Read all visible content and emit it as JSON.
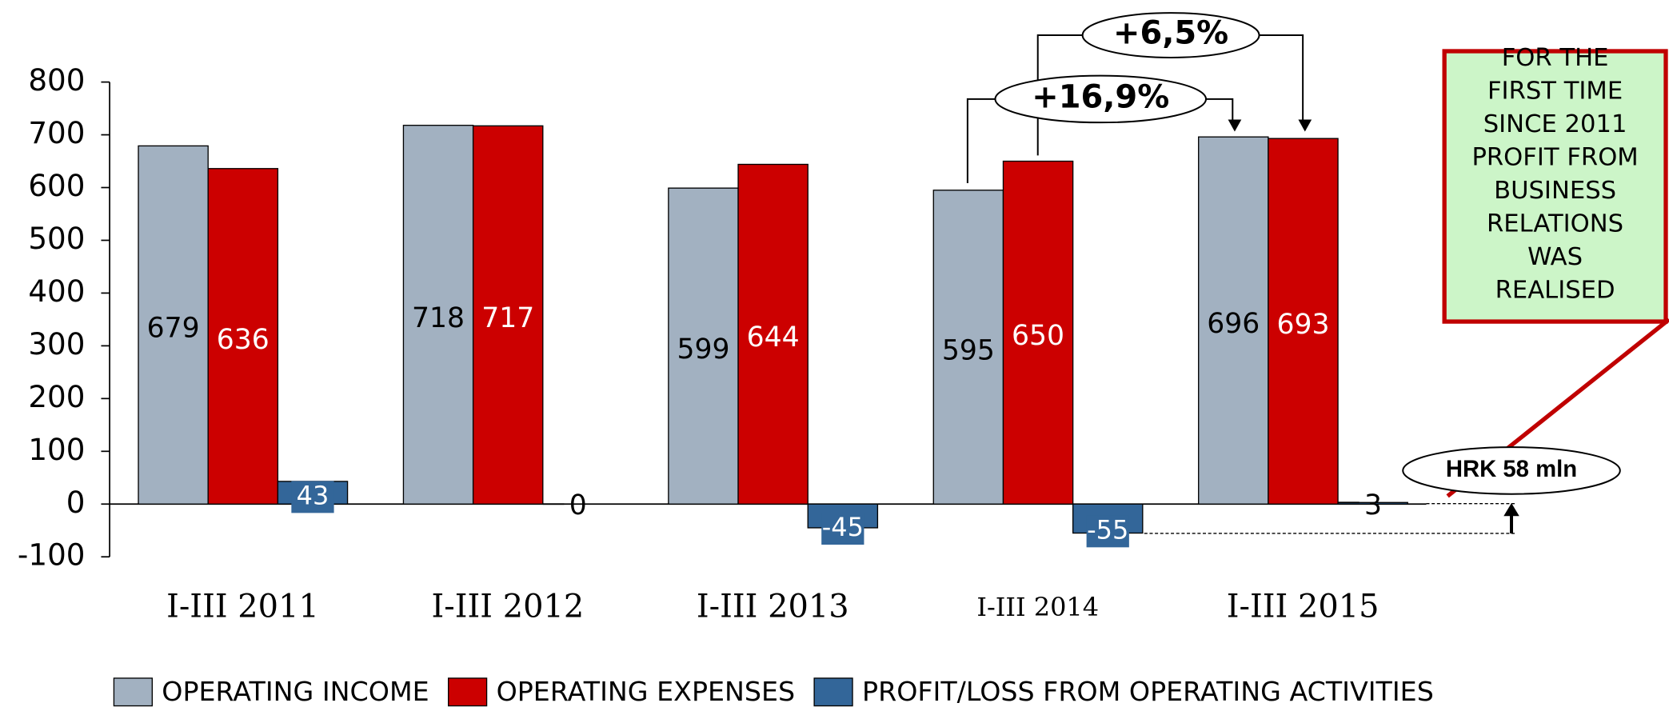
{
  "chart_data": {
    "type": "bar",
    "categories": [
      "I-III 2011",
      "I-III 2012",
      "I-III 2013",
      "I-III 2014",
      "I-III 2015"
    ],
    "series": [
      {
        "name": "OPERATING INCOME",
        "color": "#a2b1c1",
        "values": [
          679,
          718,
          599,
          595,
          696
        ]
      },
      {
        "name": "OPERATING EXPENSES",
        "color": "#cc0000",
        "values": [
          636,
          717,
          644,
          650,
          693
        ]
      },
      {
        "name": "PROFIT/LOSS FROM OPERATING ACTIVITIES",
        "color": "#336699",
        "values": [
          43,
          0,
          -45,
          -55,
          3
        ]
      }
    ],
    "ylim": [
      -100,
      800
    ],
    "yticks": [
      -100,
      0,
      100,
      200,
      300,
      400,
      500,
      600,
      700,
      800
    ],
    "annotations": {
      "growth_2014": "+16,9%",
      "growth_2015": "+6,5%",
      "profit_note": "HRK 58 mln",
      "callout": [
        "FOR THE",
        "FIRST TIME",
        "SINCE 2011",
        "PROFIT FROM",
        "BUSINESS",
        "RELATIONS",
        "WAS",
        "REALISED"
      ]
    }
  }
}
